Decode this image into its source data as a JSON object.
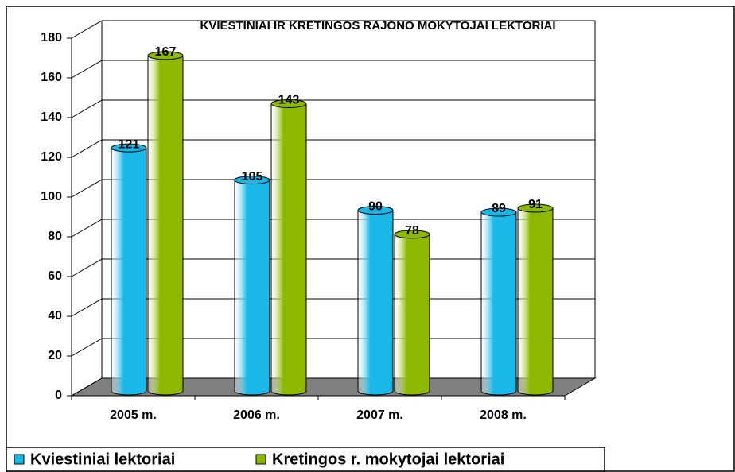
{
  "chart_data": {
    "type": "bar",
    "title": "KVIESTINIAI IR KRETINGOS RAJONO MOKYTOJAI LEKTORIAI",
    "categories": [
      "2005 m.",
      "2006 m.",
      "2007 m.",
      "2008 m."
    ],
    "series": [
      {
        "name": "Kviestiniai lektoriai",
        "color": "#1ab8e8",
        "values": [
          121,
          105,
          90,
          89
        ]
      },
      {
        "name": "Kretingos r. mokytojai lektoriai",
        "color": "#8cb800",
        "values": [
          167,
          143,
          78,
          91
        ]
      }
    ],
    "ylim": [
      0,
      180
    ],
    "yticks": [
      0,
      20,
      40,
      60,
      80,
      100,
      120,
      140,
      160,
      180
    ],
    "grid": true
  }
}
